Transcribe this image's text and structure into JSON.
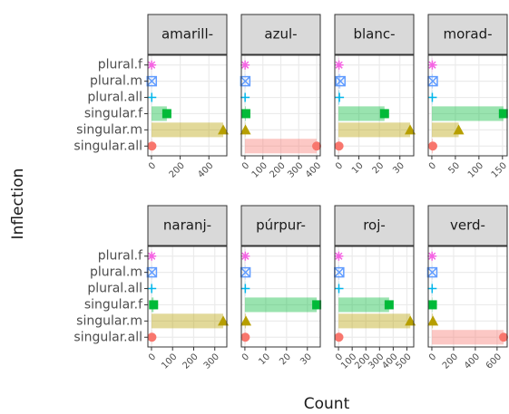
{
  "chart_data": {
    "type": "bar",
    "x_label": "Count",
    "y_label": "Inflection",
    "categories": [
      "plural.f",
      "plural.m",
      "plural.all",
      "singular.f",
      "singular.m",
      "singular.all"
    ],
    "colors": [
      "#f564e3",
      "#619cff",
      "#00b6eb",
      "#00ba38",
      "#b79f00",
      "#f8766d"
    ],
    "markers": [
      "asterisk",
      "boxed-x",
      "plus",
      "square",
      "triangle",
      "circle"
    ],
    "grid": true,
    "facets": [
      {
        "title": "amarill-",
        "values": [
          1,
          2,
          2,
          107,
          500,
          3
        ],
        "xlim": [
          -25,
          525
        ],
        "xticks": [
          0,
          200,
          400
        ]
      },
      {
        "title": "azul-",
        "values": [
          1,
          2,
          1,
          5,
          3,
          400
        ],
        "xlim": [
          -20,
          420
        ],
        "xticks": [
          0,
          100,
          200,
          300,
          400
        ]
      },
      {
        "title": "blanc-",
        "values": [
          0.3,
          1,
          0.5,
          22.5,
          35,
          0.3
        ],
        "xlim": [
          -1.75,
          36.75
        ],
        "xticks": [
          0,
          10,
          20,
          30
        ]
      },
      {
        "title": "morad-",
        "values": [
          1,
          2,
          1,
          152,
          57,
          2
        ],
        "xlim": [
          -7.6,
          160
        ],
        "xticks": [
          0,
          50,
          100,
          150
        ]
      },
      {
        "title": "naranj-",
        "values": [
          1,
          2,
          1,
          10,
          340,
          2
        ],
        "xlim": [
          -17,
          357
        ],
        "xticks": [
          0,
          100,
          200,
          300
        ]
      },
      {
        "title": "púrpur-",
        "values": [
          0.2,
          0.3,
          0.2,
          34.5,
          0.5,
          0.2
        ],
        "xlim": [
          -1.7,
          36.2
        ],
        "xticks": [
          0,
          10,
          20,
          30
        ]
      },
      {
        "title": "roj-",
        "values": [
          2,
          5,
          3,
          370,
          525,
          3
        ],
        "xlim": [
          -27,
          550
        ],
        "xticks": [
          0,
          100,
          200,
          300,
          400,
          500
        ]
      },
      {
        "title": "verd-",
        "values": [
          2,
          4,
          3,
          5,
          10,
          660
        ],
        "xlim": [
          -33,
          693
        ],
        "xticks": [
          0,
          200,
          400,
          600
        ]
      }
    ]
  }
}
